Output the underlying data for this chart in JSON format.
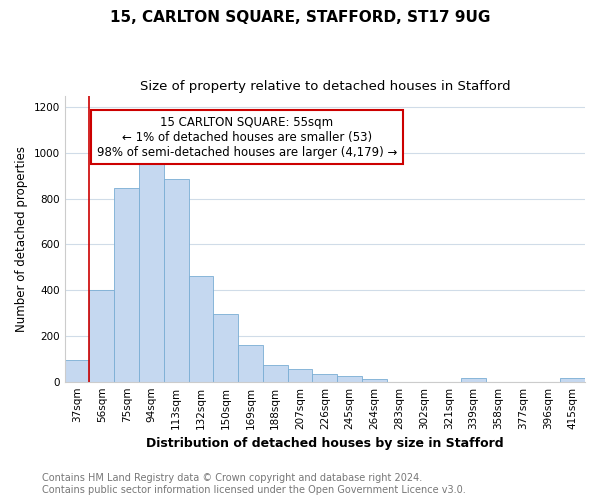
{
  "title": "15, CARLTON SQUARE, STAFFORD, ST17 9UG",
  "subtitle": "Size of property relative to detached houses in Stafford",
  "xlabel": "Distribution of detached houses by size in Stafford",
  "ylabel": "Number of detached properties",
  "categories": [
    "37sqm",
    "56sqm",
    "75sqm",
    "94sqm",
    "113sqm",
    "132sqm",
    "150sqm",
    "169sqm",
    "188sqm",
    "207sqm",
    "226sqm",
    "245sqm",
    "264sqm",
    "283sqm",
    "302sqm",
    "321sqm",
    "339sqm",
    "358sqm",
    "377sqm",
    "396sqm",
    "415sqm"
  ],
  "values": [
    95,
    400,
    845,
    965,
    885,
    460,
    295,
    160,
    75,
    55,
    35,
    25,
    10,
    0,
    0,
    0,
    15,
    0,
    0,
    0,
    15
  ],
  "bar_color": "#c5d8f0",
  "bar_edgecolor": "#7aadd4",
  "annotation_box_color": "#ffffff",
  "annotation_border_color": "#cc0000",
  "annotation_line1": "15 CARLTON SQUARE: 55sqm",
  "annotation_line2": "← 1% of detached houses are smaller (53)",
  "annotation_line3": "98% of semi-detached houses are larger (4,179) →",
  "red_line_x": 1,
  "ylim": [
    0,
    1250
  ],
  "yticks": [
    0,
    200,
    400,
    600,
    800,
    1000,
    1200
  ],
  "background_color": "#ffffff",
  "plot_background": "#ffffff",
  "grid_color": "#d0dce8",
  "footer_line1": "Contains HM Land Registry data © Crown copyright and database right 2024.",
  "footer_line2": "Contains public sector information licensed under the Open Government Licence v3.0.",
  "title_fontsize": 11,
  "subtitle_fontsize": 9.5,
  "xlabel_fontsize": 9,
  "ylabel_fontsize": 8.5,
  "tick_fontsize": 7.5,
  "annotation_fontsize": 8.5,
  "footer_fontsize": 7
}
